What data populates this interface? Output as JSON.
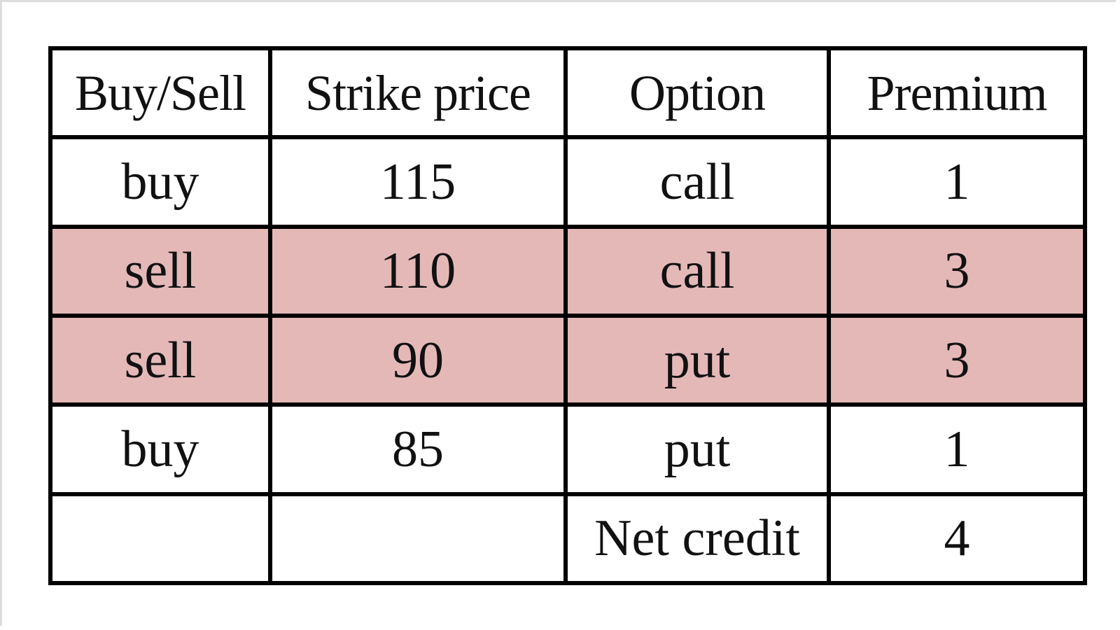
{
  "table": {
    "headers": [
      "Buy/Sell",
      "Strike price",
      "Option",
      "Premium"
    ],
    "rows": [
      {
        "action": "buy",
        "strike": "115",
        "option": "call",
        "premium": "1",
        "highlighted": false
      },
      {
        "action": "sell",
        "strike": "110",
        "option": "call",
        "premium": "3",
        "highlighted": true
      },
      {
        "action": "sell",
        "strike": "90",
        "option": "put",
        "premium": "3",
        "highlighted": true
      },
      {
        "action": "buy",
        "strike": "85",
        "option": "put",
        "premium": "1",
        "highlighted": false
      }
    ],
    "summary": {
      "action": "",
      "strike": "",
      "label": "Net credit",
      "value": "4"
    },
    "highlight_color": "#e5b8b8",
    "border_color": "#000000"
  }
}
